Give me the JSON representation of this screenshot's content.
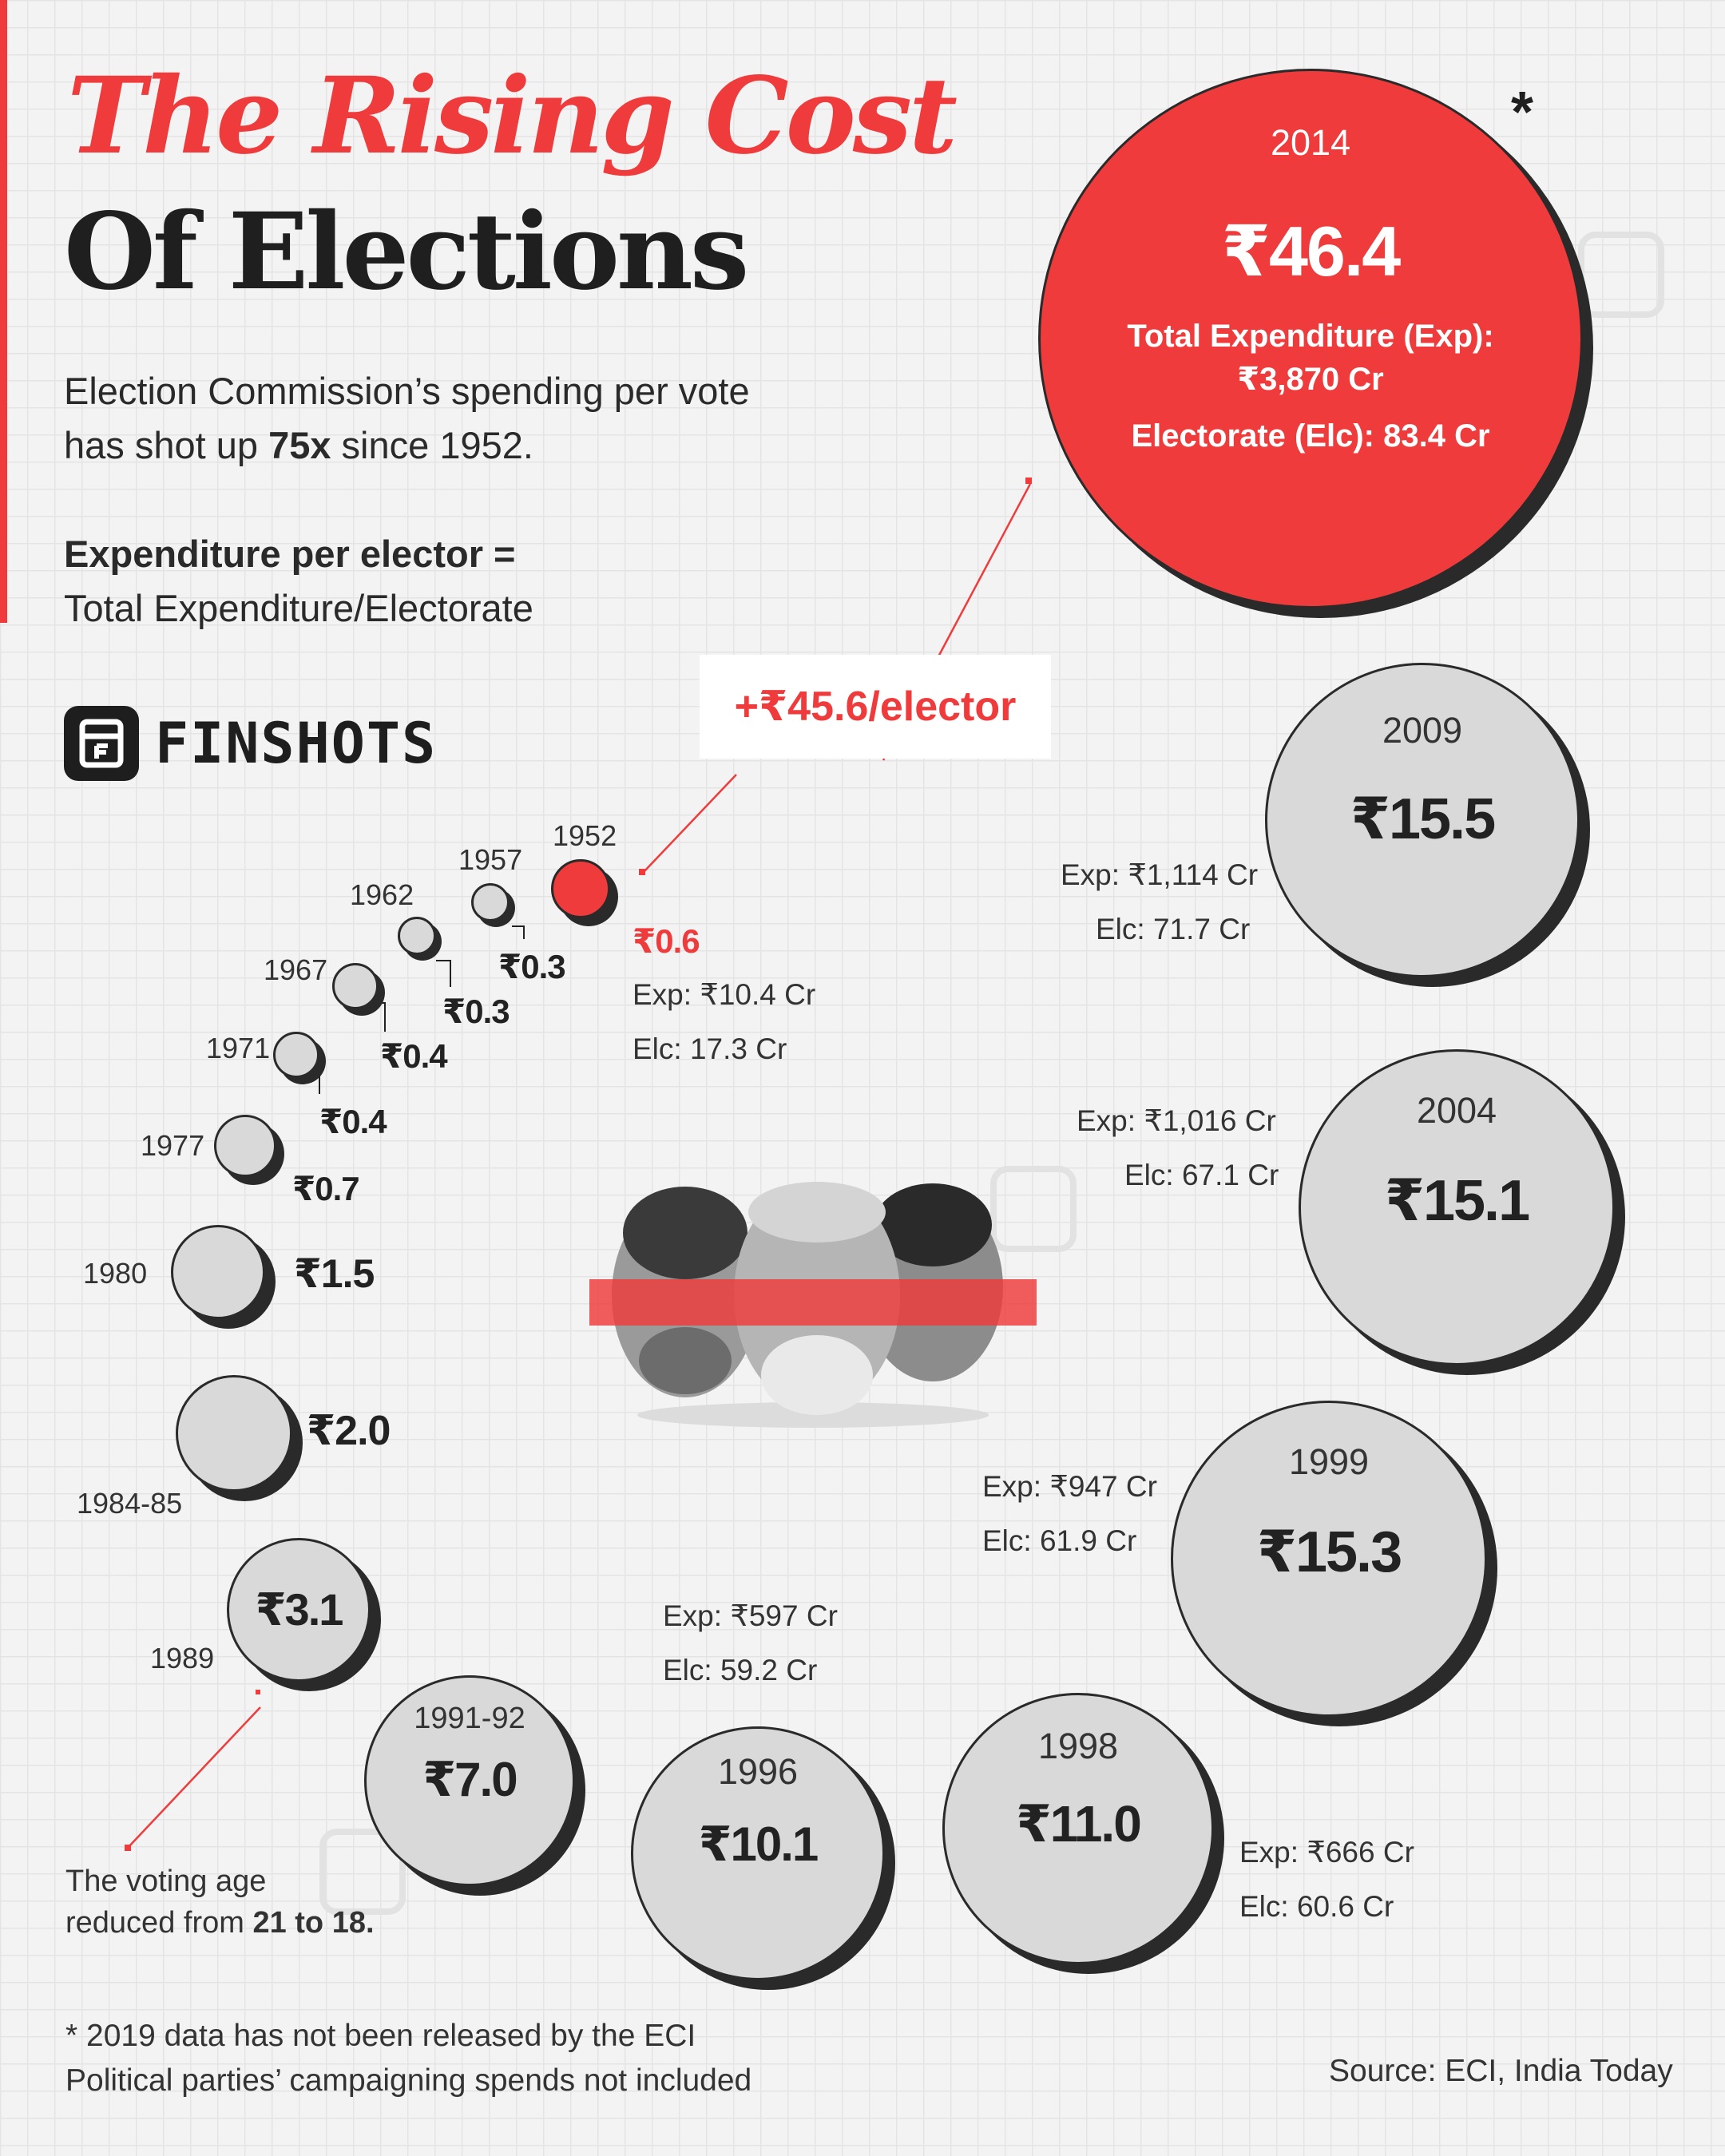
{
  "title": {
    "line1": "The Rising Cost",
    "line2": "Of Elections"
  },
  "subtitle": {
    "text1": "Election Commission’s spending per vote",
    "text2a": "has shot up ",
    "text2b": "75x",
    "text2c": " since 1952."
  },
  "formula": {
    "bold": "Expenditure per elector =",
    "normal": "Total Expenditure/Electorate"
  },
  "brand": "FINSHOTS",
  "callout": "+₹45.6/elector",
  "asterisk": "*",
  "voting_note": {
    "line1": "The voting age",
    "line2a": "reduced from ",
    "line2b": "21 to 18."
  },
  "footnotes": {
    "line1": "* 2019 data has not been released by the ECI",
    "line2": "Political parties’ campaigning spends not included"
  },
  "source": "Source: ECI, India Today",
  "colors": {
    "accent": "#ef3b3b",
    "coin": "#d9d9d9",
    "ink": "#222222"
  },
  "chart_data": {
    "type": "bubble",
    "metric": "Expenditure per elector (₹)",
    "years": [
      "1952",
      "1957",
      "1962",
      "1967",
      "1971",
      "1977",
      "1980",
      "1984-85",
      "1989",
      "1991-92",
      "1996",
      "1998",
      "1999",
      "2004",
      "2009",
      "2014"
    ],
    "values": [
      0.6,
      0.3,
      0.3,
      0.4,
      0.4,
      0.7,
      1.5,
      2.0,
      3.1,
      7.0,
      10.1,
      11.0,
      15.3,
      15.1,
      15.5,
      46.4
    ],
    "labels": [
      "₹0.6",
      "₹0.3",
      "₹0.3",
      "₹0.4",
      "₹0.4",
      "₹0.7",
      "₹1.5",
      "₹2.0",
      "₹3.1",
      "₹7.0",
      "₹10.1",
      "₹11.0",
      "₹15.3",
      "₹15.1",
      "₹15.5",
      "₹46.4"
    ],
    "details": {
      "1952": {
        "exp": "Exp: ₹10.4 Cr",
        "elc": "Elc: 17.3 Cr"
      },
      "1996": {
        "exp": "Exp:  ₹597 Cr",
        "elc": "Elc:  59.2 Cr"
      },
      "1998": {
        "exp": "Exp:  ₹666 Cr",
        "elc": "Elc:  60.6 Cr"
      },
      "1999": {
        "exp": "Exp:  ₹947 Cr",
        "elc": "Elc:  61.9 Cr"
      },
      "2004": {
        "exp": "Exp:  ₹1,016 Cr",
        "elc": "Elc:  67.1 Cr"
      },
      "2009": {
        "exp": "Exp:  ₹1,114 Cr",
        "elc": "Elc:  71.7 Cr"
      },
      "2014": {
        "exp": "Total Expenditure (Exp):",
        "exp2": "₹3,870 Cr",
        "elc": "Electorate (Elc): 83.4 Cr"
      }
    }
  }
}
